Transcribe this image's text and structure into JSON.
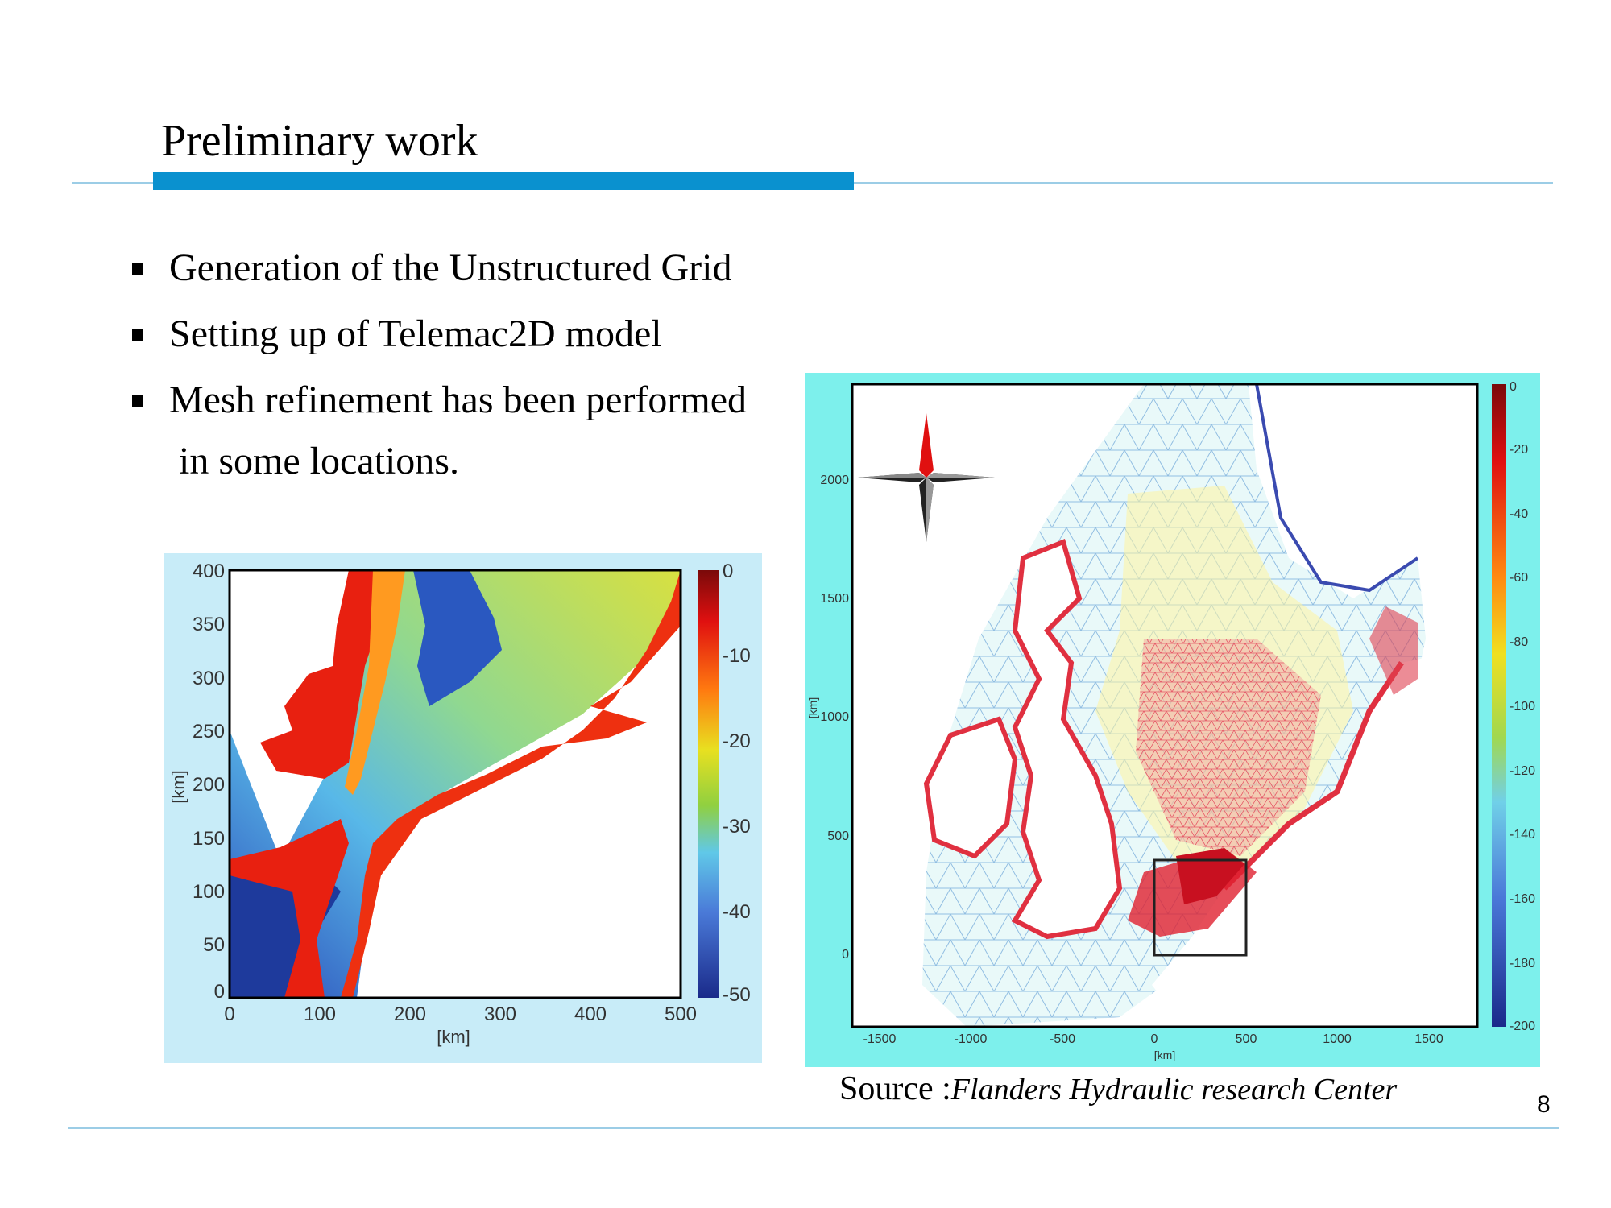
{
  "slide": {
    "title": "Preliminary work",
    "bullets": [
      "Generation of the Unstructured Grid",
      "Setting up of Telemac2D model",
      "Mesh refinement has been performed"
    ],
    "bullet_continuation": "in some locations.",
    "source_label": "Source :",
    "source_name": "Flanders Hydraulic research Center",
    "page_number": "8",
    "accent_color": "#0a91cf"
  },
  "figure_left": {
    "type": "heatmap",
    "background": "#c8ecf8",
    "x_ticks": [
      "0",
      "100",
      "200",
      "300",
      "400",
      "500"
    ],
    "y_ticks": [
      "0",
      "50",
      "100",
      "150",
      "200",
      "250",
      "300",
      "350",
      "400"
    ],
    "xlabel": "[km]",
    "ylabel": "[km]",
    "xlim": [
      0,
      500
    ],
    "ylim": [
      0,
      400
    ],
    "colorbar_ticks": [
      "0",
      "-10",
      "-20",
      "-30",
      "-40",
      "-50"
    ],
    "colorbar_range": [
      -50,
      0
    ]
  },
  "figure_right": {
    "type": "mesh",
    "background": "#7df0ec",
    "x_ticks": [
      "-1500",
      "-1000",
      "-500",
      "0",
      "500",
      "1000",
      "1500"
    ],
    "y_ticks": [
      "0",
      "500",
      "1000",
      "1500",
      "2000"
    ],
    "xlabel": "[km]",
    "ylabel": "[km]",
    "colorbar_ticks": [
      "0",
      "-20",
      "-40",
      "-60",
      "-80",
      "-100",
      "-120",
      "-140",
      "-160",
      "-180",
      "-200"
    ],
    "colorbar_range": [
      -200,
      0
    ]
  }
}
